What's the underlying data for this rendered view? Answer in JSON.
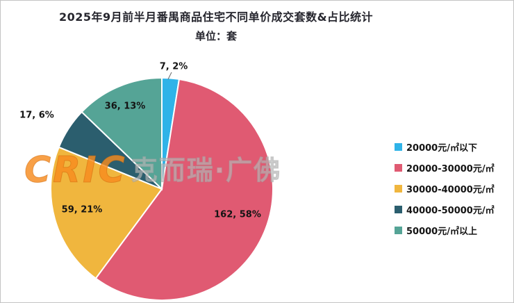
{
  "title": "2025年9月前半月番禺商品住宅不同单价成交套数&占比统计",
  "subtitle": "单位：套",
  "watermark": {
    "logo": "CRIC",
    "text": "克而瑞·广佛"
  },
  "chart_data": {
    "type": "pie",
    "title": "2025年9月前半月番禺商品住宅不同单价成交套数&占比统计",
    "unit": "套",
    "total": 281,
    "start_angle_deg": 0,
    "direction": "clockwise",
    "legend_position": "right",
    "slices": [
      {
        "label": "20000元/㎡以下",
        "value": 7,
        "percent": "2%",
        "data_label": "7, 2%",
        "color": "#2FB3E8"
      },
      {
        "label": "20000-30000元/㎡",
        "value": 162,
        "percent": "58%",
        "data_label": "162, 58%",
        "color": "#E05A72"
      },
      {
        "label": "30000-40000元/㎡",
        "value": 59,
        "percent": "21%",
        "data_label": "59, 21%",
        "color": "#F0B63E"
      },
      {
        "label": "40000-50000元/㎡",
        "value": 17,
        "percent": "6%",
        "data_label": "17, 6%",
        "color": "#2B5E6E"
      },
      {
        "label": "50000元/㎡以上",
        "value": 36,
        "percent": "13%",
        "data_label": "36, 13%",
        "color": "#55A496"
      }
    ]
  }
}
